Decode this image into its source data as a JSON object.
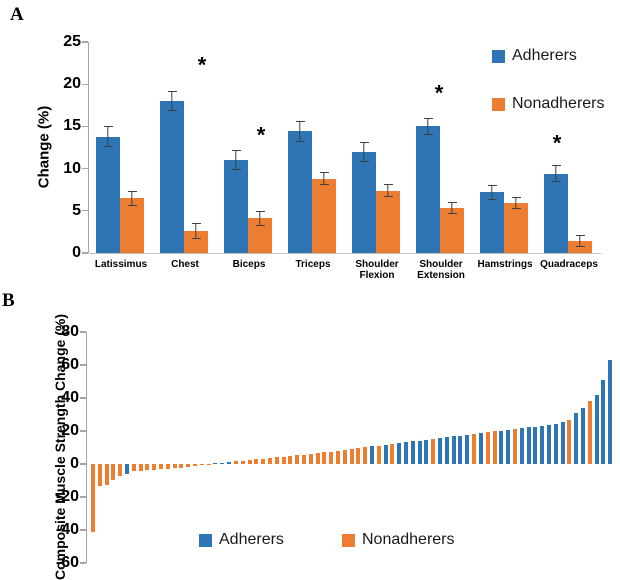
{
  "colors": {
    "adherers_blue": "#2E75B6",
    "nonadherers_orange": "#ED7D31",
    "error_bar": "#404040",
    "axis_line": "#A6A6A6",
    "baseline": "#BFBFBF",
    "text": "#000000"
  },
  "chart_data": [
    {
      "panel_label": "A",
      "type": "bar",
      "subtype": "grouped-bar-with-error-bars",
      "title": "",
      "xlabel": "",
      "ylabel": "Change (%)",
      "ylim": [
        0,
        25
      ],
      "yticks": [
        0,
        5,
        10,
        15,
        20,
        25
      ],
      "grid": false,
      "legend_position": "top-right",
      "categories": [
        "Latissimus",
        "Chest",
        "Biceps",
        "Triceps",
        "Shoulder Flexion",
        "Shoulder Extension",
        "Hamstrings",
        "Quadraceps"
      ],
      "series": [
        {
          "name": "Adherers",
          "color": "#2E75B6",
          "values": [
            13.8,
            18.0,
            11.0,
            14.4,
            12.0,
            15.0,
            7.2,
            9.4
          ],
          "errors": [
            1.2,
            1.2,
            1.2,
            1.2,
            1.2,
            1.0,
            0.9,
            1.0
          ]
        },
        {
          "name": "Nonadherers",
          "color": "#ED7D31",
          "values": [
            6.5,
            2.6,
            4.1,
            8.8,
            7.4,
            5.3,
            5.9,
            1.4
          ],
          "errors": [
            0.9,
            0.9,
            0.9,
            0.8,
            0.8,
            0.7,
            0.7,
            0.7
          ]
        }
      ],
      "significance_symbol": "*",
      "significance": [
        {
          "category": "Chest",
          "y": 22.0,
          "dx": 17
        },
        {
          "category": "Biceps",
          "y": 13.8,
          "dx": 12
        },
        {
          "category": "Shoulder Extension",
          "y": 18.7,
          "dx": -2
        },
        {
          "category": "Quadraceps",
          "y": 12.8,
          "dx": -12
        }
      ]
    },
    {
      "panel_label": "B",
      "type": "bar",
      "subtype": "sorted-individual-response-waterfall",
      "title": "",
      "xlabel": "",
      "ylabel": "Composite Muscle Strength Change (%)",
      "ylim": [
        -60,
        80
      ],
      "yticks": [
        80,
        60,
        40,
        20,
        0,
        -20,
        -40,
        -60
      ],
      "grid": false,
      "legend": [
        "Adherers",
        "Nonadherers"
      ],
      "legend_position": "bottom-inside",
      "group_colors": {
        "A": "#2E75B6",
        "N": "#ED7D31"
      },
      "group_labels": {
        "A": "Adherers",
        "N": "Nonadherers"
      },
      "bars": [
        [
          "N",
          -41
        ],
        [
          "N",
          -13.5
        ],
        [
          "N",
          -13
        ],
        [
          "N",
          -9.5
        ],
        [
          "N",
          -7.5
        ],
        [
          "A",
          -6
        ],
        [
          "N",
          -4.5
        ],
        [
          "N",
          -4.2
        ],
        [
          "N",
          -3.9
        ],
        [
          "N",
          -3.6
        ],
        [
          "N",
          -3.3
        ],
        [
          "N",
          -3.0
        ],
        [
          "N",
          -2.7
        ],
        [
          "N",
          -2.4
        ],
        [
          "N",
          -2.0
        ],
        [
          "N",
          -1.5
        ],
        [
          "N",
          -0.8
        ],
        [
          "N",
          -0.2
        ],
        [
          "A",
          0.5
        ],
        [
          "A",
          0.8
        ],
        [
          "A",
          1.2
        ],
        [
          "N",
          1.6
        ],
        [
          "N",
          2.0
        ],
        [
          "N",
          2.4
        ],
        [
          "N",
          2.8
        ],
        [
          "N",
          3.2
        ],
        [
          "N",
          3.6
        ],
        [
          "N",
          4.0
        ],
        [
          "N",
          4.4
        ],
        [
          "N",
          4.8
        ],
        [
          "N",
          5.2
        ],
        [
          "N",
          5.6
        ],
        [
          "N",
          6.0
        ],
        [
          "N",
          6.5
        ],
        [
          "N",
          7.0
        ],
        [
          "N",
          7.5
        ],
        [
          "N",
          8.0
        ],
        [
          "N",
          8.6
        ],
        [
          "N",
          9.2
        ],
        [
          "N",
          9.8
        ],
        [
          "N",
          10.3
        ],
        [
          "A",
          10.8
        ],
        [
          "N",
          11.2
        ],
        [
          "A",
          11.7
        ],
        [
          "N",
          12.2
        ],
        [
          "A",
          12.7
        ],
        [
          "A",
          13.2
        ],
        [
          "A",
          13.7
        ],
        [
          "A",
          14.2
        ],
        [
          "A",
          14.7
        ],
        [
          "N",
          15.2
        ],
        [
          "A",
          15.7
        ],
        [
          "A",
          16.2
        ],
        [
          "A",
          16.7
        ],
        [
          "A",
          17.2
        ],
        [
          "A",
          17.7
        ],
        [
          "N",
          18.2
        ],
        [
          "A",
          18.7
        ],
        [
          "N",
          19.2
        ],
        [
          "N",
          19.7
        ],
        [
          "A",
          20.2
        ],
        [
          "A",
          20.7
        ],
        [
          "N",
          21.2
        ],
        [
          "A",
          21.7
        ],
        [
          "A",
          22.2
        ],
        [
          "A",
          22.7
        ],
        [
          "A",
          23.2
        ],
        [
          "A",
          23.7
        ],
        [
          "A",
          24.5
        ],
        [
          "A",
          25.5
        ],
        [
          "N",
          26.5
        ],
        [
          "A",
          31
        ],
        [
          "A",
          34
        ],
        [
          "N",
          38
        ],
        [
          "A",
          42
        ],
        [
          "A",
          51
        ],
        [
          "A",
          63
        ]
      ]
    }
  ]
}
